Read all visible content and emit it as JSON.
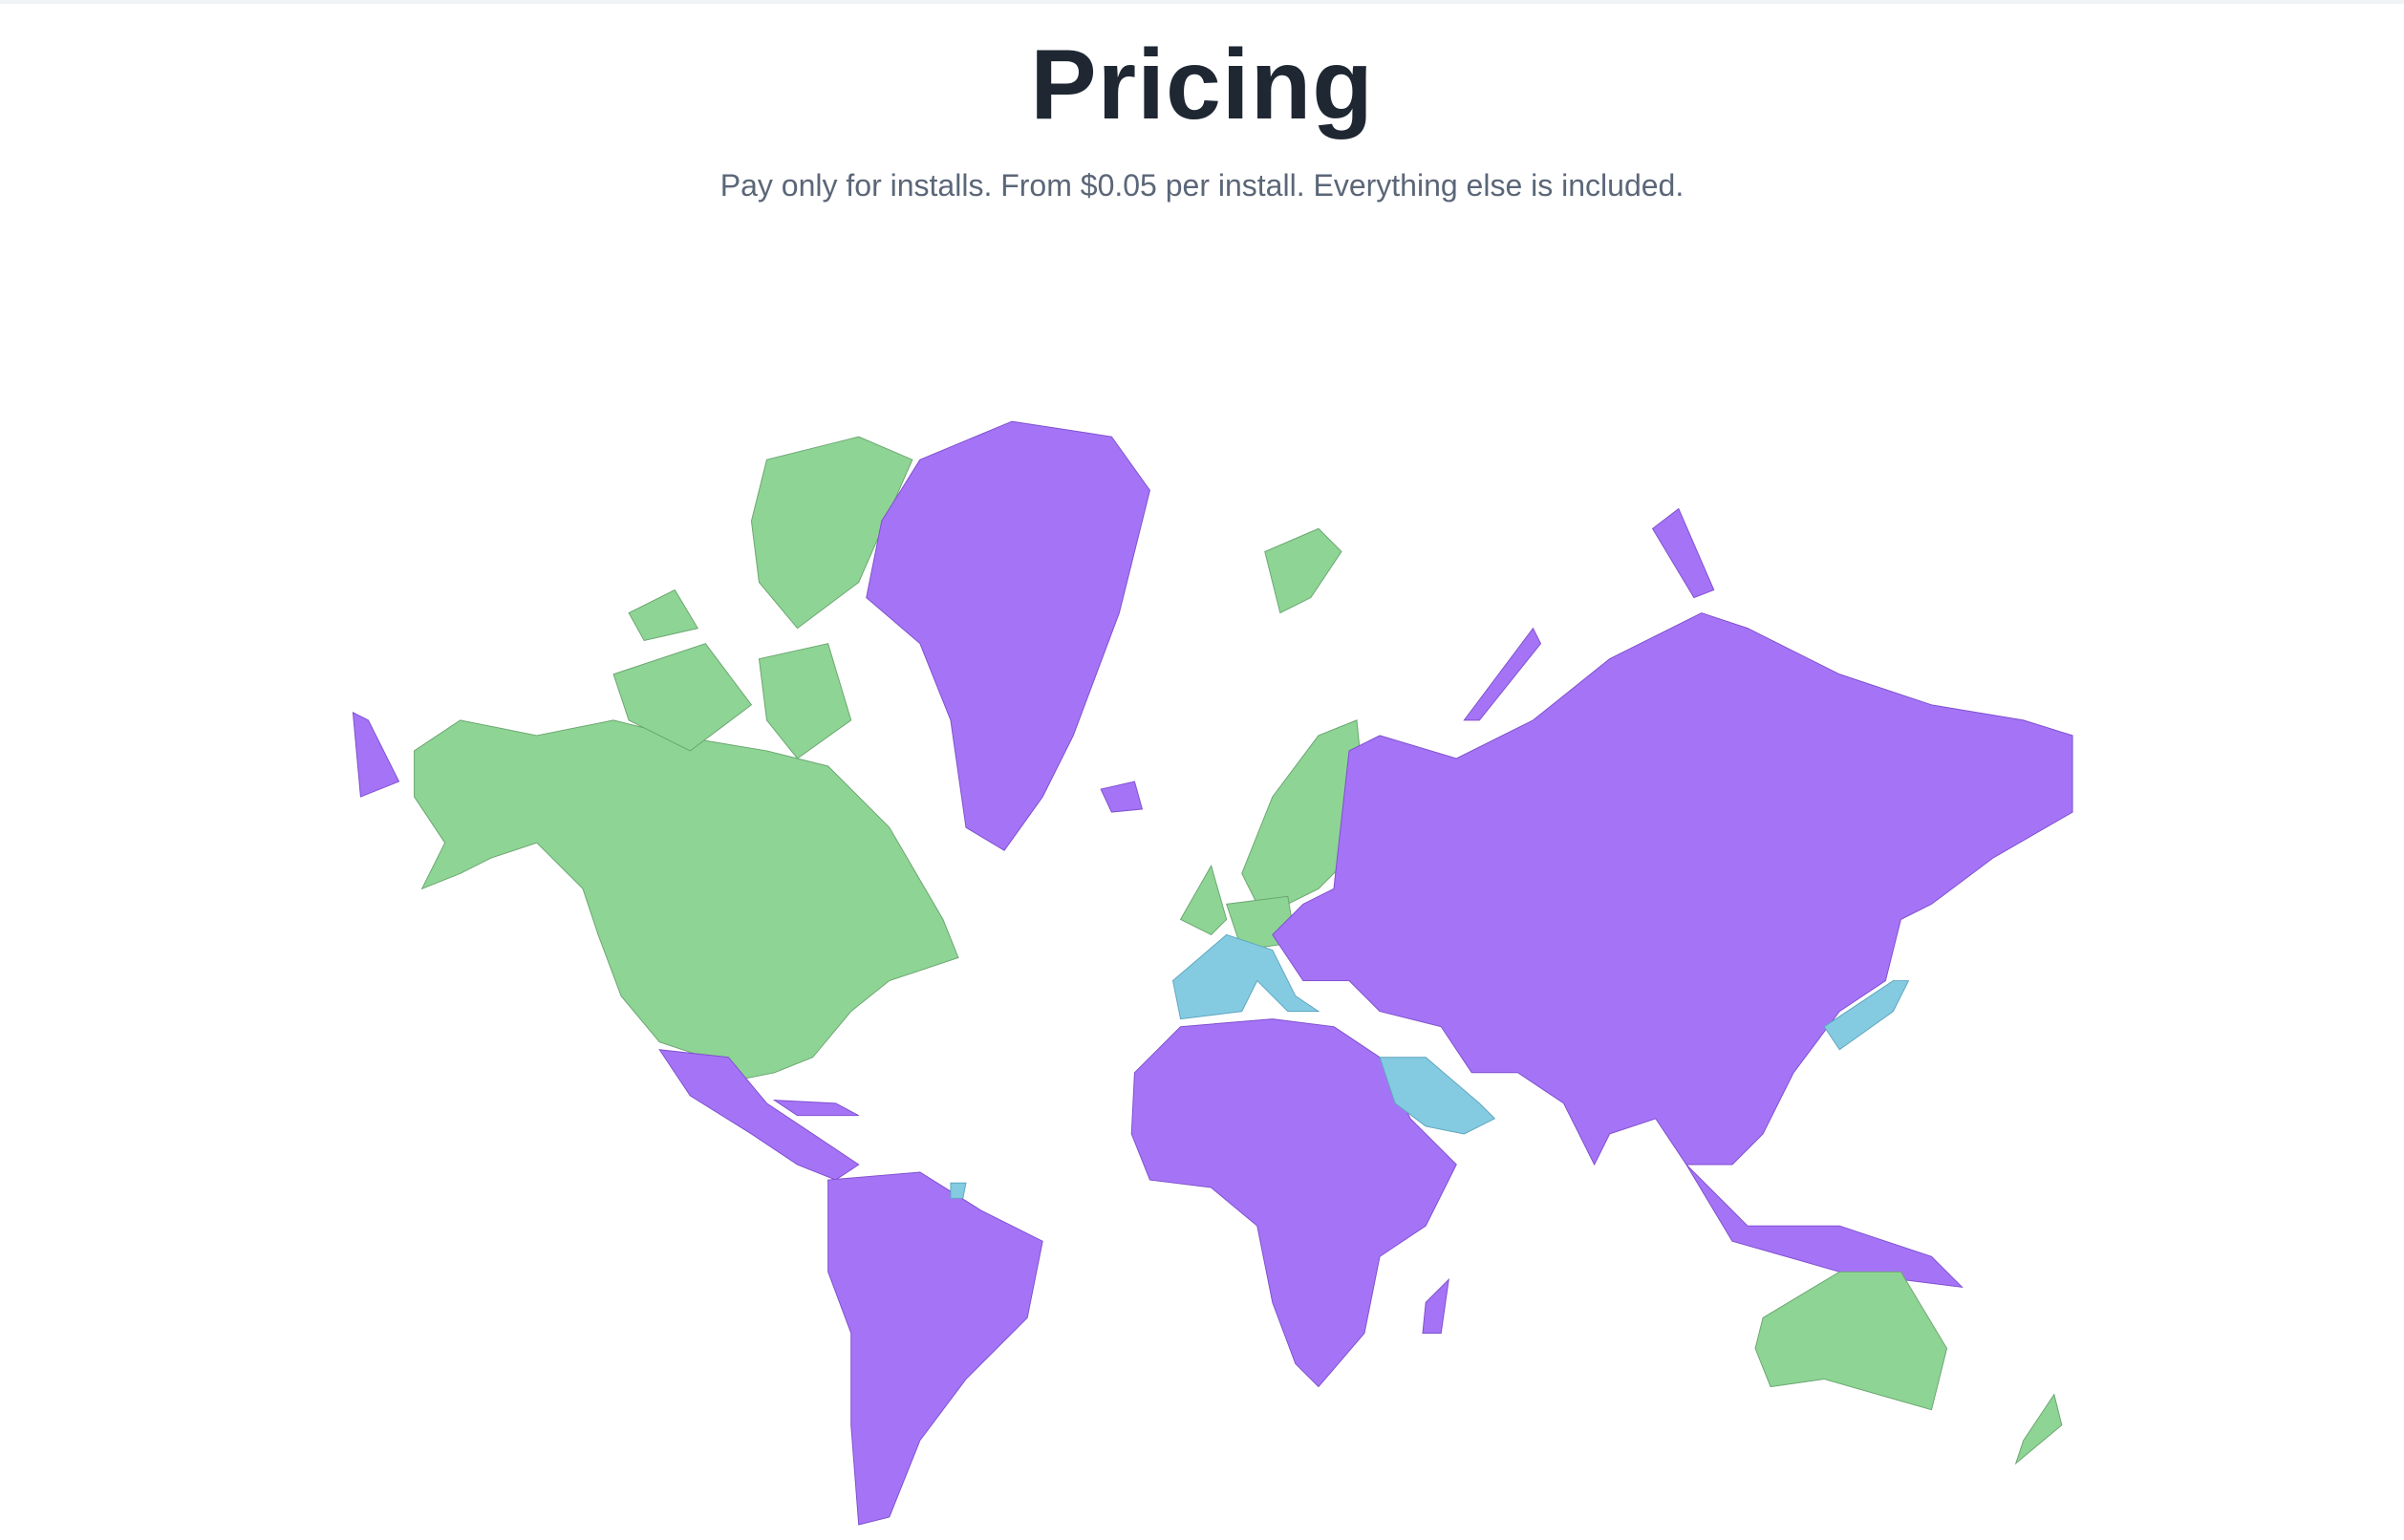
{
  "header": {
    "title": "Pricing",
    "subtitle": "Pay only for installs. From $0.05 per install. Everything else is included."
  }
}
